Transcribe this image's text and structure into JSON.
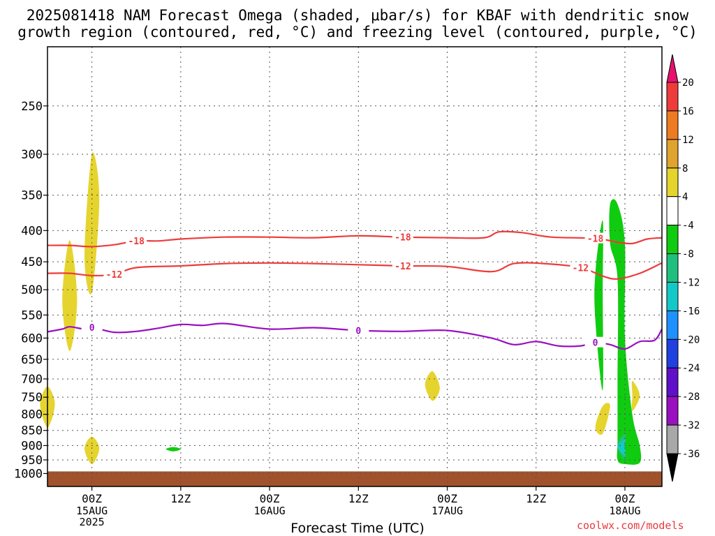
{
  "chart_data": {
    "type": "time-height-cross-section",
    "title_line1": "2025081418 NAM Forecast Omega (shaded, μbar/s) for KBAF with dendritic snow",
    "title_line2": "growth region (contoured, red, °C) and freezing level (contoured, purple, °C)",
    "xlabel": "Forecast Time (UTC)",
    "credit": "coolwx.com/models",
    "y_axis": {
      "label": "",
      "scale": "log",
      "range": [
        1050,
        200
      ],
      "ticks": [
        250,
        300,
        350,
        400,
        450,
        500,
        550,
        600,
        650,
        700,
        750,
        800,
        850,
        900,
        950,
        1000
      ]
    },
    "x_axis": {
      "range": [
        "2025-08-14T18Z",
        "2025-08-18T05Z"
      ],
      "ticks": [
        {
          "time": "2025-08-15T00Z",
          "label": "00Z",
          "sub1": "15AUG",
          "sub2": "2025"
        },
        {
          "time": "2025-08-15T12Z",
          "label": "12Z",
          "sub1": "",
          "sub2": ""
        },
        {
          "time": "2025-08-16T00Z",
          "label": "00Z",
          "sub1": "16AUG",
          "sub2": ""
        },
        {
          "time": "2025-08-16T12Z",
          "label": "12Z",
          "sub1": "",
          "sub2": ""
        },
        {
          "time": "2025-08-17T00Z",
          "label": "00Z",
          "sub1": "17AUG",
          "sub2": ""
        },
        {
          "time": "2025-08-17T12Z",
          "label": "12Z",
          "sub1": "",
          "sub2": ""
        },
        {
          "time": "2025-08-18T00Z",
          "label": "00Z",
          "sub1": "18AUG",
          "sub2": ""
        }
      ]
    },
    "grid": true,
    "colorbar": {
      "position": "right",
      "labels": [
        "20",
        "16",
        "12",
        "8",
        "4",
        "-4",
        "-8",
        "-12",
        "-16",
        "-20",
        "-24",
        "-28",
        "-32",
        "-36"
      ],
      "colors": [
        "#e8106e",
        "#ee3b3b",
        "#ee7b22",
        "#e0a32e",
        "#e6d42e",
        "#ffffff",
        "#10cc10",
        "#1fbf80",
        "#15c8c8",
        "#1e90ff",
        "#2040e0",
        "#6010c8",
        "#9a10c0",
        "#a8a8a8",
        "#000000"
      ]
    },
    "contours": [
      {
        "name": "-18",
        "color": "#ee3b3b",
        "points": [
          [
            "2025-08-14T18Z",
            423
          ],
          [
            "2025-08-14T21Z",
            423
          ],
          [
            "2025-08-15T00Z",
            425
          ],
          [
            "2025-08-15T03Z",
            422
          ],
          [
            "2025-08-15T06Z",
            416
          ],
          [
            "2025-08-15T09Z",
            416
          ],
          [
            "2025-08-15T12Z",
            413
          ],
          [
            "2025-08-15T18Z",
            410
          ],
          [
            "2025-08-16T00Z",
            410
          ],
          [
            "2025-08-16T06Z",
            411
          ],
          [
            "2025-08-16T12Z",
            408
          ],
          [
            "2025-08-16T18Z",
            410
          ],
          [
            "2025-08-17T00Z",
            411
          ],
          [
            "2025-08-17T05Z",
            411
          ],
          [
            "2025-08-17T07Z",
            402
          ],
          [
            "2025-08-17T10Z",
            403
          ],
          [
            "2025-08-17T14Z",
            410
          ],
          [
            "2025-08-17T20Z",
            412
          ],
          [
            "2025-08-17T23Z",
            418
          ],
          [
            "2025-08-18T01Z",
            420
          ],
          [
            "2025-08-18T03Z",
            413
          ],
          [
            "2025-08-18T05Z",
            411
          ]
        ]
      },
      {
        "name": "-12",
        "color": "#ee3b3b",
        "points": [
          [
            "2025-08-14T18Z",
            470
          ],
          [
            "2025-08-14T21Z",
            470
          ],
          [
            "2025-08-15T00Z",
            474
          ],
          [
            "2025-08-15T03Z",
            472
          ],
          [
            "2025-08-15T06Z",
            460
          ],
          [
            "2025-08-15T12Z",
            457
          ],
          [
            "2025-08-15T18Z",
            453
          ],
          [
            "2025-08-16T00Z",
            452
          ],
          [
            "2025-08-16T06Z",
            453
          ],
          [
            "2025-08-16T12Z",
            455
          ],
          [
            "2025-08-16T18Z",
            457
          ],
          [
            "2025-08-17T00Z",
            458
          ],
          [
            "2025-08-17T06Z",
            467
          ],
          [
            "2025-08-17T09Z",
            453
          ],
          [
            "2025-08-17T13Z",
            453
          ],
          [
            "2025-08-17T18Z",
            460
          ],
          [
            "2025-08-17T21Z",
            475
          ],
          [
            "2025-08-17T23Z",
            480
          ],
          [
            "2025-08-18T02Z",
            470
          ],
          [
            "2025-08-18T05Z",
            452
          ]
        ]
      },
      {
        "name": "0",
        "color": "#9a10c0",
        "points": [
          [
            "2025-08-14T18Z",
            586
          ],
          [
            "2025-08-14T20Z",
            580
          ],
          [
            "2025-08-14T21Z",
            575
          ],
          [
            "2025-08-14T23Z",
            580
          ],
          [
            "2025-08-15T00Z",
            576
          ],
          [
            "2025-08-15T03Z",
            587
          ],
          [
            "2025-08-15T06Z",
            585
          ],
          [
            "2025-08-15T09Z",
            578
          ],
          [
            "2025-08-15T12Z",
            570
          ],
          [
            "2025-08-15T15Z",
            572
          ],
          [
            "2025-08-15T18Z",
            568
          ],
          [
            "2025-08-16T00Z",
            580
          ],
          [
            "2025-08-16T06Z",
            577
          ],
          [
            "2025-08-16T12Z",
            583
          ],
          [
            "2025-08-16T18Z",
            585
          ],
          [
            "2025-08-17T00Z",
            583
          ],
          [
            "2025-08-17T06Z",
            600
          ],
          [
            "2025-08-17T09Z",
            615
          ],
          [
            "2025-08-17T12Z",
            608
          ],
          [
            "2025-08-17T15Z",
            618
          ],
          [
            "2025-08-17T18Z",
            618
          ],
          [
            "2025-08-17T20Z",
            610
          ],
          [
            "2025-08-17T22Z",
            615
          ],
          [
            "2025-08-18T00Z",
            625
          ],
          [
            "2025-08-18T02Z",
            608
          ],
          [
            "2025-08-18T04Z",
            605
          ],
          [
            "2025-08-18T05Z",
            580
          ]
        ]
      }
    ],
    "shaded_regions": [
      {
        "color": "#e6d42e",
        "points": [
          [
            "2025-08-15T00Z",
            300
          ],
          [
            "2025-08-15T01Z",
            355
          ],
          [
            "2025-08-15T00Z",
            505
          ],
          [
            "2025-08-14T23Z",
            440
          ]
        ]
      },
      {
        "color": "#e6d42e",
        "points": [
          [
            "2025-08-14T21Z",
            415
          ],
          [
            "2025-08-14T22Z",
            520
          ],
          [
            "2025-08-14T21Z",
            630
          ],
          [
            "2025-08-14T20Z",
            520
          ]
        ]
      },
      {
        "color": "#e6d42e",
        "points": [
          [
            "2025-08-14T18Z",
            720
          ],
          [
            "2025-08-14T19Z",
            770
          ],
          [
            "2025-08-14T18Z",
            840
          ],
          [
            "2025-08-14T17Z",
            770
          ]
        ]
      },
      {
        "color": "#e6d42e",
        "points": [
          [
            "2025-08-15T00Z",
            870
          ],
          [
            "2025-08-15T01Z",
            910
          ],
          [
            "2025-08-15T00Z",
            965
          ],
          [
            "2025-08-14T23Z",
            910
          ]
        ]
      },
      {
        "color": "#e6d42e",
        "points": [
          [
            "2025-08-16T22Z",
            680
          ],
          [
            "2025-08-16T23Z",
            725
          ],
          [
            "2025-08-16T22Z",
            760
          ],
          [
            "2025-08-16T21Z",
            715
          ]
        ]
      },
      {
        "color": "#e6d42e",
        "points": [
          [
            "2025-08-17T21Z",
            775
          ],
          [
            "2025-08-17T22Z",
            775
          ],
          [
            "2025-08-17T21Z",
            860
          ],
          [
            "2025-08-17T20Z",
            840
          ]
        ]
      },
      {
        "color": "#e6d42e",
        "points": [
          [
            "2025-08-18T01Z",
            705
          ],
          [
            "2025-08-18T02Z",
            745
          ],
          [
            "2025-08-18T01Z",
            790
          ],
          [
            "2025-08-18T01Z",
            745
          ]
        ]
      },
      {
        "color": "#10cc10",
        "points": [
          [
            "2025-08-15T11Z",
            905
          ],
          [
            "2025-08-15T12Z",
            912
          ],
          [
            "2025-08-15T11Z",
            920
          ],
          [
            "2025-08-15T10Z",
            912
          ]
        ]
      },
      {
        "color": "#10cc10",
        "points": [
          [
            "2025-08-17T22Z",
            362
          ],
          [
            "2025-08-17T23Z",
            362
          ],
          [
            "2025-08-18T00Z",
            420
          ],
          [
            "2025-08-18T00Z",
            600
          ],
          [
            "2025-08-18T01Z",
            800
          ],
          [
            "2025-08-18T02Z",
            900
          ],
          [
            "2025-08-18T02Z",
            960
          ],
          [
            "2025-08-18T00Z",
            965
          ],
          [
            "2025-08-17T23Z",
            950
          ],
          [
            "2025-08-17T23Z",
            880
          ],
          [
            "2025-08-17T23Z",
            700
          ],
          [
            "2025-08-17T23Z",
            480
          ],
          [
            "2025-08-17T22Z",
            420
          ]
        ]
      },
      {
        "color": "#10cc10",
        "points": [
          [
            "2025-08-17T21Z",
            385
          ],
          [
            "2025-08-17T21Z",
            500
          ],
          [
            "2025-08-17T21Z",
            730
          ],
          [
            "2025-08-17T20Z",
            560
          ],
          [
            "2025-08-17T20Z",
            470
          ]
        ]
      },
      {
        "color": "#1fbf80",
        "points": [
          [
            "2025-08-18T00Z",
            860
          ],
          [
            "2025-08-18T00Z",
            900
          ],
          [
            "2025-08-18T00Z",
            950
          ],
          [
            "2025-08-17T23Z",
            900
          ]
        ]
      },
      {
        "color": "#15c8c8",
        "points": [
          [
            "2025-08-18T00Z",
            880
          ],
          [
            "2025-08-18T00Z",
            905
          ],
          [
            "2025-08-18T00Z",
            935
          ],
          [
            "2025-08-17T23Z",
            905
          ]
        ]
      }
    ],
    "surface_color": "#a0522d"
  }
}
